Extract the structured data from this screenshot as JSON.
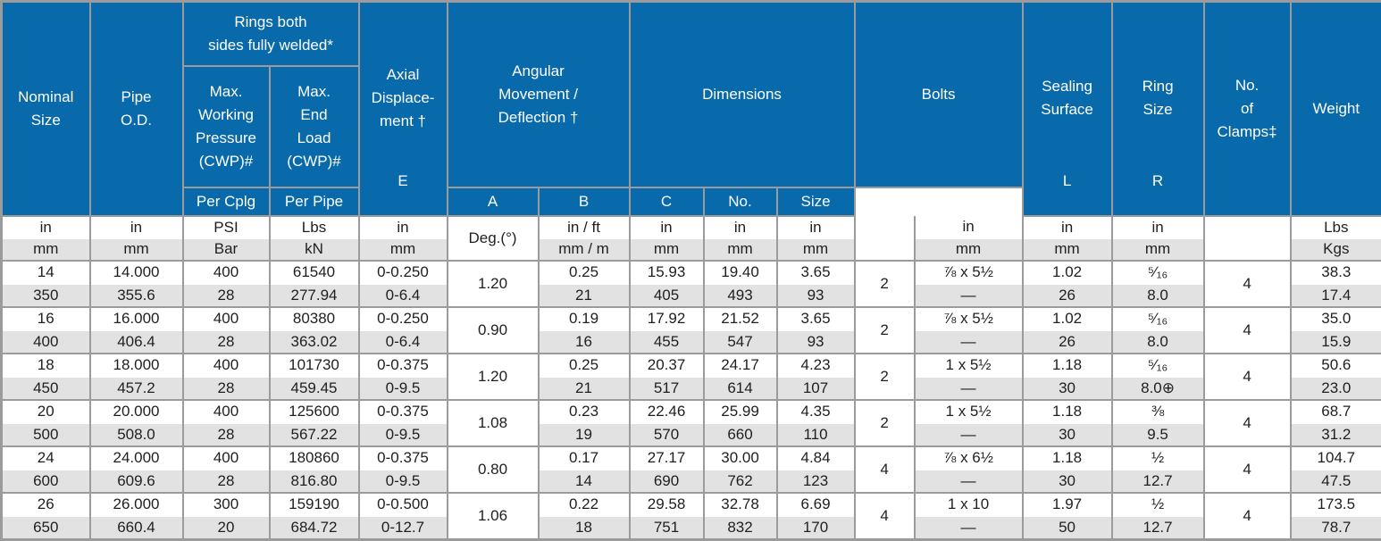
{
  "colors": {
    "header_bg": "#0869AB",
    "header_text": "#FFFFFF",
    "grid_border": "#9B9B9B",
    "row_alt_bg": "#E2E2E2",
    "row_bg": "#FFFFFF",
    "body_text": "#1F1F1F"
  },
  "header": {
    "nominal_size": "Nominal\nSize",
    "pipe_od": "Pipe\nO.D.",
    "rings_group": "Rings both\nsides fully welded*",
    "max_working_pressure": "Max.\nWorking\nPressure\n(CWP)#",
    "max_end_load": "Max.\nEnd\nLoad\n(CWP)#",
    "axial_displacement": "Axial\nDisplace-\nment †",
    "axial_sub": "E",
    "angular_group": "Angular\nMovement /\nDeflection †",
    "per_cplg": "Per Cplg",
    "per_pipe": "Per  Pipe",
    "dimensions_group": "Dimensions",
    "dim_a": "A",
    "dim_b": "B",
    "dim_c": "C",
    "bolts_group": "Bolts",
    "bolts_no": "No.",
    "bolts_size": "Size",
    "sealing_surface": "Sealing\nSurface",
    "sealing_sub": "L",
    "ring_size": "Ring\nSize",
    "ring_sub": "R",
    "clamps": "No.\nof\nClamps‡",
    "weight": "Weight"
  },
  "units": {
    "nominal": [
      "in",
      "mm"
    ],
    "od": [
      "in",
      "mm"
    ],
    "cwp": [
      "PSI",
      "Bar"
    ],
    "load": [
      "Lbs",
      "kN"
    ],
    "axial": [
      "in",
      "mm"
    ],
    "per_cplg": "Deg.(°)",
    "per_pipe": [
      "in / ft",
      "mm /  m"
    ],
    "a": [
      "in",
      "mm"
    ],
    "b": [
      "in",
      "mm"
    ],
    "c": [
      "in",
      "mm"
    ],
    "bolts_no": "",
    "bolt_size": [
      "in",
      "mm"
    ],
    "l": [
      "in",
      "mm"
    ],
    "r": [
      "in",
      "mm"
    ],
    "clamps": "",
    "weight": [
      "Lbs",
      "Kgs"
    ]
  },
  "rows": [
    {
      "nominal": [
        "14",
        "350"
      ],
      "od": [
        "14.000",
        "355.6"
      ],
      "cwp": [
        "400",
        "28"
      ],
      "load": [
        "61540",
        "277.94"
      ],
      "axial": [
        "0-0.250",
        "0-6.4"
      ],
      "per_cplg": "1.20",
      "per_pipe": [
        "0.25",
        "21"
      ],
      "a": [
        "15.93",
        "405"
      ],
      "b": [
        "19.40",
        "493"
      ],
      "c": [
        "3.65",
        "93"
      ],
      "bolts_no": "2",
      "bolt_size": [
        "⅞ x 5½",
        "—"
      ],
      "l": [
        "1.02",
        "26"
      ],
      "r": [
        "⁵⁄₁₆",
        "8.0"
      ],
      "clamps": "4",
      "weight": [
        "38.3",
        "17.4"
      ]
    },
    {
      "nominal": [
        "16",
        "400"
      ],
      "od": [
        "16.000",
        "406.4"
      ],
      "cwp": [
        "400",
        "28"
      ],
      "load": [
        "80380",
        "363.02"
      ],
      "axial": [
        "0-0.250",
        "0-6.4"
      ],
      "per_cplg": "0.90",
      "per_pipe": [
        "0.19",
        "16"
      ],
      "a": [
        "17.92",
        "455"
      ],
      "b": [
        "21.52",
        "547"
      ],
      "c": [
        "3.65",
        "93"
      ],
      "bolts_no": "2",
      "bolt_size": [
        "⅞ x 5½",
        "—"
      ],
      "l": [
        "1.02",
        "26"
      ],
      "r": [
        "⁵⁄₁₆",
        "8.0"
      ],
      "clamps": "4",
      "weight": [
        "35.0",
        "15.9"
      ]
    },
    {
      "nominal": [
        "18",
        "450"
      ],
      "od": [
        "18.000",
        "457.2"
      ],
      "cwp": [
        "400",
        "28"
      ],
      "load": [
        "101730",
        "459.45"
      ],
      "axial": [
        "0-0.375",
        "0-9.5"
      ],
      "per_cplg": "1.20",
      "per_pipe": [
        "0.25",
        "21"
      ],
      "a": [
        "20.37",
        "517"
      ],
      "b": [
        "24.17",
        "614"
      ],
      "c": [
        "4.23",
        "107"
      ],
      "bolts_no": "2",
      "bolt_size": [
        "1 x 5½",
        "—"
      ],
      "l": [
        "1.18",
        "30"
      ],
      "r": [
        "⁵⁄₁₆",
        "8.0⊕"
      ],
      "clamps": "4",
      "weight": [
        "50.6",
        "23.0"
      ]
    },
    {
      "nominal": [
        "20",
        "500"
      ],
      "od": [
        "20.000",
        "508.0"
      ],
      "cwp": [
        "400",
        "28"
      ],
      "load": [
        "125600",
        "567.22"
      ],
      "axial": [
        "0-0.375",
        "0-9.5"
      ],
      "per_cplg": "1.08",
      "per_pipe": [
        "0.23",
        "19"
      ],
      "a": [
        "22.46",
        "570"
      ],
      "b": [
        "25.99",
        "660"
      ],
      "c": [
        "4.35",
        "110"
      ],
      "bolts_no": "2",
      "bolt_size": [
        "1 x 5½",
        "—"
      ],
      "l": [
        "1.18",
        "30"
      ],
      "r": [
        "⅜",
        "9.5"
      ],
      "clamps": "4",
      "weight": [
        "68.7",
        "31.2"
      ]
    },
    {
      "nominal": [
        "24",
        "600"
      ],
      "od": [
        "24.000",
        "609.6"
      ],
      "cwp": [
        "400",
        "28"
      ],
      "load": [
        "180860",
        "816.80"
      ],
      "axial": [
        "0-0.375",
        "0-9.5"
      ],
      "per_cplg": "0.80",
      "per_pipe": [
        "0.17",
        "14"
      ],
      "a": [
        "27.17",
        "690"
      ],
      "b": [
        "30.00",
        "762"
      ],
      "c": [
        "4.84",
        "123"
      ],
      "bolts_no": "4",
      "bolt_size": [
        "⅞ x 6½",
        "—"
      ],
      "l": [
        "1.18",
        "30"
      ],
      "r": [
        "½",
        "12.7"
      ],
      "clamps": "4",
      "weight": [
        "104.7",
        "47.5"
      ]
    },
    {
      "nominal": [
        "26",
        "650"
      ],
      "od": [
        "26.000",
        "660.4"
      ],
      "cwp": [
        "300",
        "20"
      ],
      "load": [
        "159190",
        "684.72"
      ],
      "axial": [
        "0-0.500",
        "0-12.7"
      ],
      "per_cplg": "1.06",
      "per_pipe": [
        "0.22",
        "18"
      ],
      "a": [
        "29.58",
        "751"
      ],
      "b": [
        "32.78",
        "832"
      ],
      "c": [
        "6.69",
        "170"
      ],
      "bolts_no": "4",
      "bolt_size": [
        "1 x 10",
        "—"
      ],
      "l": [
        "1.97",
        "50"
      ],
      "r": [
        "½",
        "12.7"
      ],
      "clamps": "4",
      "weight": [
        "173.5",
        "78.7"
      ]
    }
  ]
}
